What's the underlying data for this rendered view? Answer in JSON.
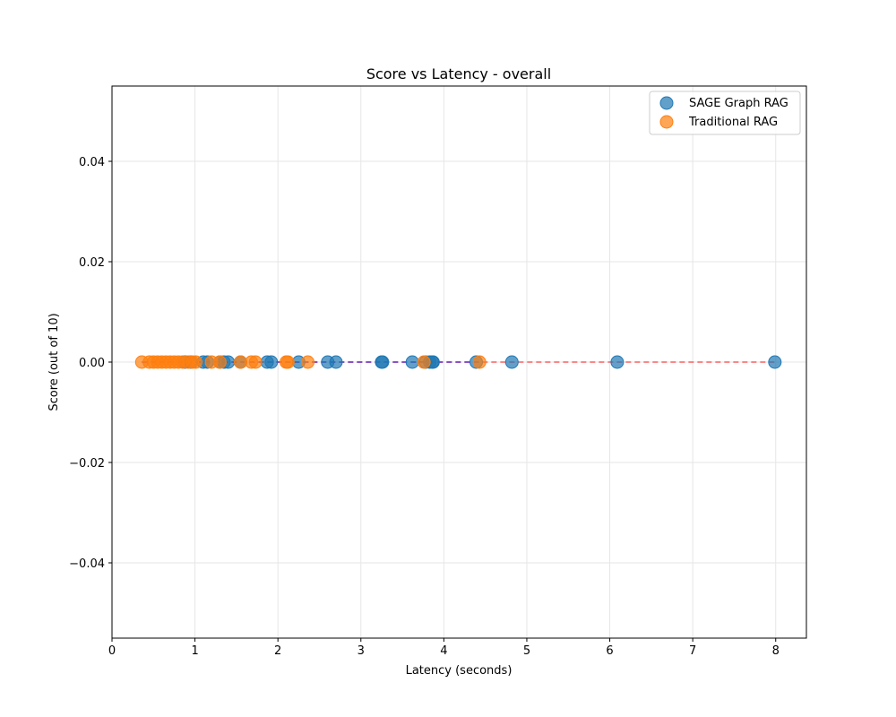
{
  "chart_data": {
    "type": "scatter",
    "title": "Score vs Latency - overall",
    "xlabel": "Latency (seconds)",
    "ylabel": "Score (out of 10)",
    "xlim": [
      0,
      8.37
    ],
    "ylim": [
      -0.055,
      0.055
    ],
    "xticks": [
      0,
      1,
      2,
      3,
      4,
      5,
      6,
      7,
      8
    ],
    "yticks": [
      -0.04,
      -0.02,
      0.0,
      0.02,
      0.04
    ],
    "xtick_labels": [
      "0",
      "1",
      "2",
      "3",
      "4",
      "5",
      "6",
      "7",
      "8"
    ],
    "ytick_labels": [
      "−0.04",
      "−0.02",
      "0.00",
      "0.02",
      "0.04"
    ],
    "grid": true,
    "legend_position": "top-right",
    "series": [
      {
        "name": "SAGE Graph RAG",
        "color": "#1f77b4",
        "x": [
          0.88,
          0.95,
          1.1,
          1.15,
          1.3,
          1.35,
          1.4,
          1.55,
          1.87,
          1.92,
          2.25,
          2.6,
          2.7,
          3.25,
          3.26,
          3.62,
          3.78,
          3.83,
          3.86,
          3.87,
          4.39,
          4.82,
          6.09,
          7.99
        ],
        "y": [
          0,
          0,
          0,
          0,
          0,
          0,
          0,
          0,
          0,
          0,
          0,
          0,
          0,
          0,
          0,
          0,
          0,
          0,
          0,
          0,
          0,
          0,
          0,
          0
        ]
      },
      {
        "name": "Traditional RAG",
        "color": "#ff7f0e",
        "x": [
          0.36,
          0.45,
          0.5,
          0.55,
          0.6,
          0.65,
          0.7,
          0.75,
          0.8,
          0.85,
          0.92,
          0.97,
          1.01,
          1.2,
          1.3,
          1.55,
          1.68,
          1.73,
          2.1,
          2.12,
          2.36,
          3.76,
          4.43
        ],
        "y": [
          0,
          0,
          0,
          0,
          0,
          0,
          0,
          0,
          0,
          0,
          0,
          0,
          0,
          0,
          0,
          0,
          0,
          0,
          0,
          0,
          0,
          0,
          0
        ]
      }
    ],
    "trend_lines": [
      {
        "color": "#ff0000",
        "style": "dashed",
        "x": [
          0.36,
          7.99
        ],
        "y": [
          0,
          0
        ]
      },
      {
        "color": "#0000ff",
        "style": "dashed",
        "x": [
          0.36,
          4.43
        ],
        "y": [
          0,
          0
        ]
      }
    ]
  }
}
